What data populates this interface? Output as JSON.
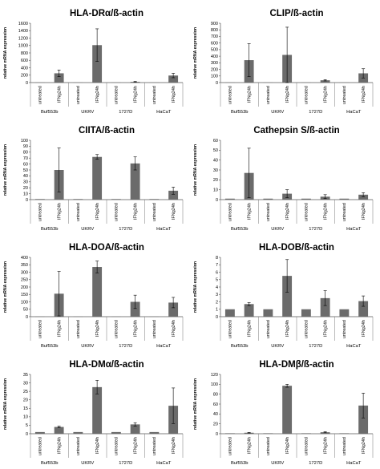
{
  "chart_data": [
    {
      "type": "bar",
      "title": "HLA-DRα/ß-actin",
      "ylabel": "relative mRNA expression",
      "ylim": [
        0,
        1600
      ],
      "yticks": [
        0,
        200,
        400,
        600,
        800,
        1000,
        1200,
        1400,
        1600
      ],
      "bar_labels": [
        "untreated",
        "IFNg24h",
        "untreated",
        "IFNg24h",
        "untreated",
        "IFNg24h",
        "untreated",
        "IFNg24h"
      ],
      "groups": [
        "Buf553b",
        "UKRV",
        "1727D",
        "HaCaT"
      ],
      "values": [
        3,
        250,
        3,
        1010,
        3,
        20,
        3,
        190
      ],
      "errors": [
        0,
        90,
        0,
        440,
        0,
        10,
        0,
        60
      ],
      "bar_color": "#6b6b6b",
      "grid": false
    },
    {
      "type": "bar",
      "title": "CLIP/ß-actin",
      "ylabel": "relative mRNA expression",
      "ylim": [
        0,
        900
      ],
      "yticks": [
        0,
        100,
        200,
        300,
        400,
        500,
        600,
        700,
        800,
        900
      ],
      "bar_labels": [
        "untreated",
        "IFNg24h",
        "untreated",
        "IFNg24h",
        "untreated",
        "IFNg24h",
        "untreated",
        "IFNg24h"
      ],
      "groups": [
        "Buf553b",
        "UKRV",
        "1727D",
        "HaCaT"
      ],
      "values": [
        2,
        340,
        2,
        420,
        2,
        35,
        2,
        140
      ],
      "errors": [
        0,
        250,
        0,
        420,
        0,
        10,
        0,
        70
      ],
      "bar_color": "#6b6b6b",
      "grid": false
    },
    {
      "type": "bar",
      "title": "CIITA/ß-actin",
      "ylabel": "relative mRNA expression",
      "ylim": [
        0,
        100
      ],
      "yticks": [
        0,
        10,
        20,
        30,
        40,
        50,
        60,
        70,
        80,
        90,
        100
      ],
      "bar_labels": [
        "untreated",
        "IFNg24h",
        "untreated",
        "IFNg24h",
        "untreated",
        "IFNg24h",
        "untreated",
        "IFNg24h"
      ],
      "groups": [
        "Buf553b",
        "UKRV",
        "1727D",
        "HaCaT"
      ],
      "values": [
        1,
        50,
        1,
        72,
        1,
        61,
        1,
        15
      ],
      "errors": [
        0,
        37,
        0,
        4,
        0,
        11,
        0,
        6
      ],
      "bar_color": "#6b6b6b",
      "grid": false
    },
    {
      "type": "bar",
      "title": "Cathepsin S/ß-actin",
      "ylabel": "relative mRNA expression",
      "ylim": [
        0,
        60
      ],
      "yticks": [
        0,
        10,
        20,
        30,
        40,
        50,
        60
      ],
      "bar_labels": [
        "untreated",
        "IFNg24h",
        "untreated",
        "IFNg24h",
        "untreated",
        "IFNg24h",
        "untreated",
        "IFNg24h"
      ],
      "groups": [
        "Buf553b",
        "UKRV",
        "1727D",
        "HaCaT"
      ],
      "values": [
        1,
        27,
        1,
        6,
        1,
        3,
        1,
        5
      ],
      "errors": [
        0,
        25,
        0,
        4,
        0,
        2,
        0,
        2
      ],
      "bar_color": "#6b6b6b",
      "grid": false
    },
    {
      "type": "bar",
      "title": "HLA-DOA/ß-actin",
      "ylabel": "relative mRNA expression",
      "ylim": [
        0,
        400
      ],
      "yticks": [
        0,
        50,
        100,
        150,
        200,
        250,
        300,
        350,
        400
      ],
      "bar_labels": [
        "untreated",
        "IFNg24h",
        "untreated",
        "IFNg24h",
        "untreated",
        "IFNg24h",
        "untreated",
        "IFNg24h"
      ],
      "groups": [
        "Buf553b",
        "UKRV",
        "1727D",
        "HaCaT"
      ],
      "values": [
        1,
        155,
        1,
        335,
        1,
        100,
        1,
        95
      ],
      "errors": [
        0,
        150,
        0,
        40,
        0,
        45,
        0,
        35
      ],
      "bar_color": "#6b6b6b",
      "grid": false
    },
    {
      "type": "bar",
      "title": "HLA-DOB/ß-actin",
      "ylabel": "relative mRNA expression",
      "ylim": [
        0,
        8
      ],
      "yticks": [
        0,
        1,
        2,
        3,
        4,
        5,
        6,
        7,
        8
      ],
      "bar_labels": [
        "untreated",
        "IFNg24h",
        "untreated",
        "IFNg24h",
        "untreated",
        "IFNg24h",
        "untreated",
        "IFNg24h"
      ],
      "groups": [
        "Buf553b",
        "UKRV",
        "1727D",
        "HaCaT"
      ],
      "values": [
        1,
        1.7,
        1,
        5.5,
        1,
        2.5,
        1,
        2.1
      ],
      "errors": [
        0,
        0.2,
        0,
        2.2,
        0,
        1.0,
        0,
        0.7
      ],
      "bar_color": "#6b6b6b",
      "grid": false
    },
    {
      "type": "bar",
      "title": "HLA-DMα/ß-actin",
      "ylabel": "relative mRNA expression",
      "ylim": [
        0,
        35
      ],
      "yticks": [
        0,
        5,
        10,
        15,
        20,
        25,
        30,
        35
      ],
      "bar_labels": [
        "untreated",
        "IFNg24h",
        "untreated",
        "IFNg24h",
        "untreated",
        "IFNg24h",
        "untreated",
        "IFNg24h"
      ],
      "groups": [
        "Buf553b",
        "UKRV",
        "1727D",
        "HaCaT"
      ],
      "values": [
        1,
        4,
        1,
        27.5,
        1,
        5.5,
        1,
        16.5
      ],
      "errors": [
        0,
        0.5,
        0,
        4,
        0,
        1,
        0,
        10.5
      ],
      "bar_color": "#6b6b6b",
      "grid": false
    },
    {
      "type": "bar",
      "title": "HLA-DMβ/ß-actin",
      "ylabel": "relative mRNA expression",
      "ylim": [
        0,
        120
      ],
      "yticks": [
        0,
        20,
        40,
        60,
        80,
        100,
        120
      ],
      "bar_labels": [
        "untreated",
        "IFNg24h",
        "untreated",
        "IFNg24h",
        "untreated",
        "IFNg24h",
        "untreated",
        "IFNg24h"
      ],
      "groups": [
        "Buf553b",
        "UKRV",
        "1727D",
        "HaCaT"
      ],
      "values": [
        1,
        2,
        1,
        97,
        1,
        3,
        1,
        57
      ],
      "errors": [
        0,
        0.5,
        0,
        3,
        0,
        1,
        0,
        25
      ],
      "bar_color": "#6b6b6b",
      "grid": false
    }
  ]
}
